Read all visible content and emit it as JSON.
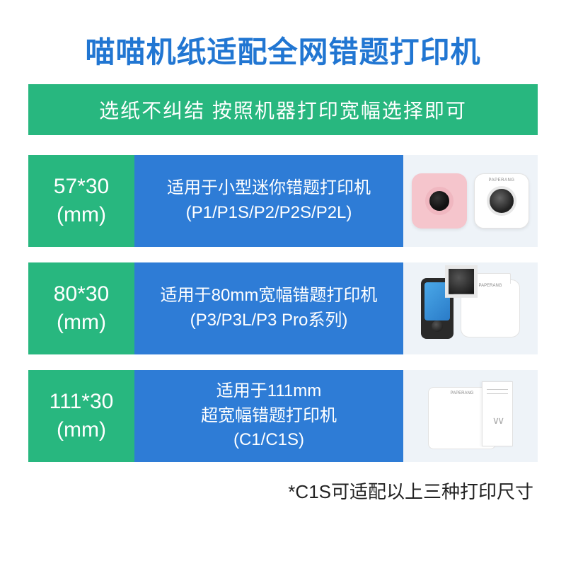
{
  "title": "喵喵机纸适配全网错题打印机",
  "subtitle": "选纸不纠结 按照机器打印宽幅选择即可",
  "colors": {
    "title_color": "#2176d2",
    "subbar_bg": "#28b77f",
    "size_bg": "#28b77f",
    "desc_bg": "#2e7cd6",
    "img_bg": "#eef3f8",
    "page_bg": "#ffffff",
    "text_on_color": "#ffffff"
  },
  "rows": [
    {
      "size_line1": "57*30",
      "size_line2": "(mm)",
      "desc_line1": "适用于小型迷你错题打印机",
      "desc_line2": "(P1/P1S/P2/P2S/P2L)"
    },
    {
      "size_line1": "80*30",
      "size_line2": "(mm)",
      "desc_line1": "适用于80mm宽幅错题打印机",
      "desc_line2": "(P3/P3L/P3 Pro系列)"
    },
    {
      "size_line1": "111*30",
      "size_line2": "(mm)",
      "desc_line1": "适用于111mm",
      "desc_line2": "超宽幅错题打印机",
      "desc_line3": "(C1/C1S)"
    }
  ],
  "brand_label": "PAPERANG",
  "footnote": "*C1S可适配以上三种打印尺寸",
  "typography": {
    "title_fontsize": 42,
    "subbar_fontsize": 28,
    "size_fontsize": 30,
    "desc_fontsize": 24,
    "footnote_fontsize": 26
  }
}
